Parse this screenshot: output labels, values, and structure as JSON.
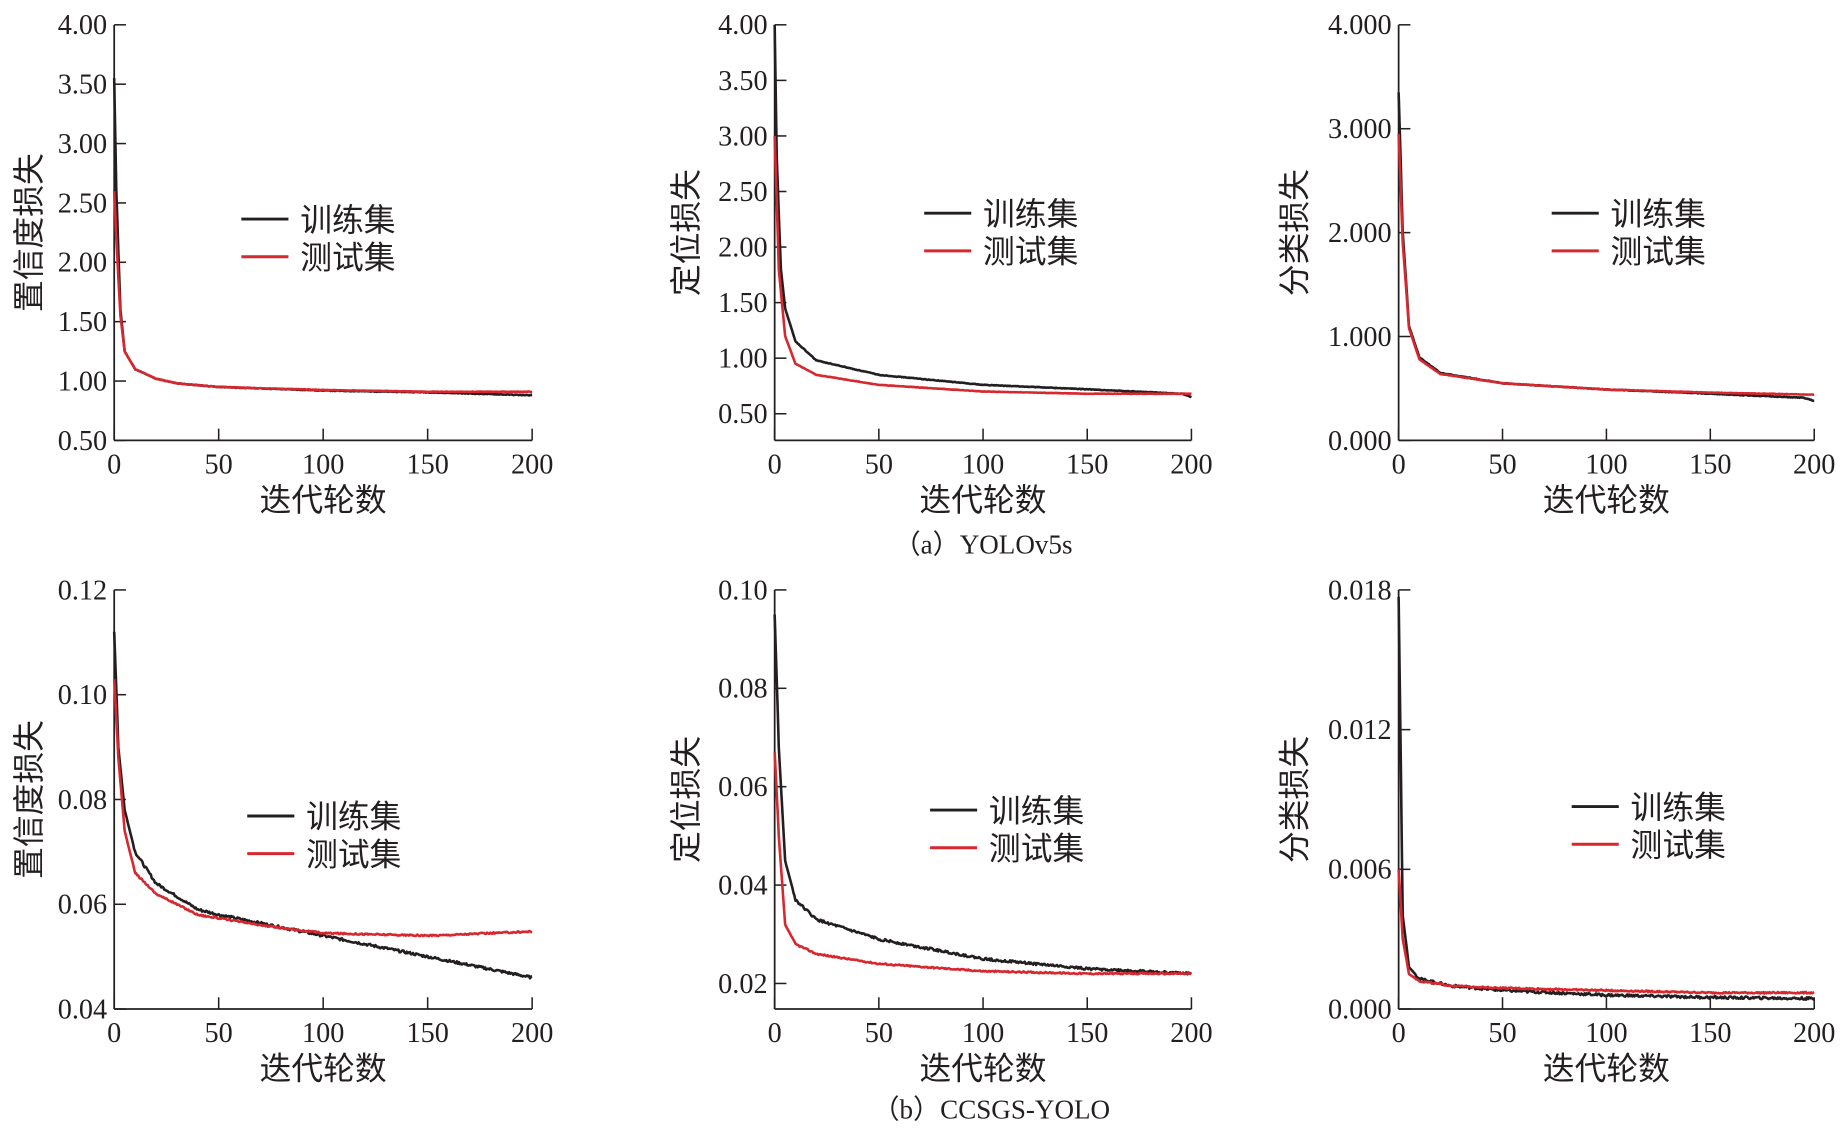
{
  "colors": {
    "train": "#231f20",
    "test": "#d7272f",
    "axis": "#231f20"
  },
  "legend": {
    "train": "训练集",
    "test": "测试集"
  },
  "captions": [
    "（a）YOLOv5s",
    "（b）CCSGS-YOLO"
  ],
  "chart_data": [
    {
      "type": "line",
      "row": 0,
      "col": 0,
      "ylabel": "置信度损失",
      "xlabel": "迭代轮数",
      "xlim": [
        0,
        200
      ],
      "ylim": [
        0.5,
        4.0
      ],
      "yticks": [
        "0.50",
        "1.00",
        "1.50",
        "2.00",
        "2.50",
        "3.00",
        "3.50",
        "4.00"
      ],
      "xticks": [
        "0",
        "50",
        "100",
        "150",
        "200"
      ],
      "grid": false,
      "legend_position": "center",
      "series": [
        {
          "name": "训练集",
          "points": [
            [
              0,
              3.55
            ],
            [
              1,
              2.6
            ],
            [
              3,
              1.6
            ],
            [
              5,
              1.25
            ],
            [
              10,
              1.1
            ],
            [
              20,
              1.02
            ],
            [
              30,
              0.98
            ],
            [
              50,
              0.95
            ],
            [
              100,
              0.92
            ],
            [
              150,
              0.905
            ],
            [
              200,
              0.88
            ]
          ]
        },
        {
          "name": "测试集",
          "points": [
            [
              0,
              2.6
            ],
            [
              1,
              2.2
            ],
            [
              3,
              1.55
            ],
            [
              5,
              1.25
            ],
            [
              10,
              1.1
            ],
            [
              20,
              1.02
            ],
            [
              30,
              0.98
            ],
            [
              50,
              0.95
            ],
            [
              100,
              0.925
            ],
            [
              150,
              0.91
            ],
            [
              200,
              0.91
            ]
          ]
        }
      ]
    },
    {
      "type": "line",
      "row": 0,
      "col": 1,
      "ylabel": "定位损失",
      "xlabel": "迭代轮数",
      "xlim": [
        0,
        200
      ],
      "ylim": [
        0.5,
        4.0
      ],
      "ymin_axis": 0.26,
      "yticks": [
        "0.50",
        "1.00",
        "1.50",
        "2.00",
        "2.50",
        "3.00",
        "3.50",
        "4.00"
      ],
      "xticks": [
        "0",
        "50",
        "100",
        "150",
        "200"
      ],
      "grid": false,
      "legend_position": "center",
      "series": [
        {
          "name": "训练集",
          "points": [
            [
              0,
              4.0
            ],
            [
              1,
              2.8
            ],
            [
              3,
              1.8
            ],
            [
              5,
              1.45
            ],
            [
              10,
              1.15
            ],
            [
              20,
              0.98
            ],
            [
              50,
              0.85
            ],
            [
              100,
              0.76
            ],
            [
              150,
              0.72
            ],
            [
              195,
              0.68
            ],
            [
              200,
              0.65
            ]
          ]
        },
        {
          "name": "测试集",
          "points": [
            [
              0,
              3.0
            ],
            [
              2,
              1.8
            ],
            [
              5,
              1.2
            ],
            [
              10,
              0.95
            ],
            [
              20,
              0.85
            ],
            [
              50,
              0.76
            ],
            [
              100,
              0.7
            ],
            [
              150,
              0.68
            ],
            [
              200,
              0.68
            ]
          ]
        }
      ]
    },
    {
      "type": "line",
      "row": 0,
      "col": 2,
      "ylabel": "分类损失",
      "xlabel": "迭代轮数",
      "xlim": [
        0,
        200
      ],
      "ylim": [
        0,
        4.0
      ],
      "yticks": [
        "0.000",
        "1.000",
        "2.000",
        "3.000",
        "4.000"
      ],
      "xticks": [
        "0",
        "50",
        "100",
        "150",
        "200"
      ],
      "grid": false,
      "legend_position": "center",
      "series": [
        {
          "name": "训练集",
          "points": [
            [
              0,
              3.35
            ],
            [
              2,
              2.0
            ],
            [
              5,
              1.1
            ],
            [
              10,
              0.8
            ],
            [
              20,
              0.65
            ],
            [
              50,
              0.55
            ],
            [
              100,
              0.49
            ],
            [
              150,
              0.45
            ],
            [
              195,
              0.41
            ],
            [
              200,
              0.38
            ]
          ]
        },
        {
          "name": "测试集",
          "points": [
            [
              0,
              2.95
            ],
            [
              2,
              1.9
            ],
            [
              5,
              1.08
            ],
            [
              10,
              0.78
            ],
            [
              20,
              0.64
            ],
            [
              50,
              0.55
            ],
            [
              100,
              0.49
            ],
            [
              150,
              0.46
            ],
            [
              200,
              0.44
            ]
          ]
        }
      ]
    },
    {
      "type": "line",
      "row": 1,
      "col": 0,
      "ylabel": "置信度损失",
      "xlabel": "迭代轮数",
      "xlim": [
        0,
        200
      ],
      "ylim": [
        0.04,
        0.12
      ],
      "yticks": [
        "0.04",
        "0.06",
        "0.08",
        "0.10",
        "0.12"
      ],
      "xticks": [
        "0",
        "50",
        "100",
        "150",
        "200"
      ],
      "grid": false,
      "legend_position": "center",
      "series": [
        {
          "name": "训练集",
          "points": [
            [
              0,
              0.112
            ],
            [
              2,
              0.09
            ],
            [
              5,
              0.078
            ],
            [
              10,
              0.07
            ],
            [
              20,
              0.064
            ],
            [
              40,
              0.059
            ],
            [
              50,
              0.058
            ],
            [
              100,
              0.054
            ],
            [
              150,
              0.05
            ],
            [
              200,
              0.046
            ]
          ]
        },
        {
          "name": "测试集",
          "points": [
            [
              0,
              0.103
            ],
            [
              2,
              0.088
            ],
            [
              5,
              0.074
            ],
            [
              10,
              0.066
            ],
            [
              20,
              0.062
            ],
            [
              40,
              0.058
            ],
            [
              70,
              0.056
            ],
            [
              100,
              0.0545
            ],
            [
              150,
              0.054
            ],
            [
              200,
              0.0548
            ]
          ]
        }
      ]
    },
    {
      "type": "line",
      "row": 1,
      "col": 1,
      "ylabel": "定位损失",
      "xlabel": "迭代轮数",
      "xlim": [
        0,
        200
      ],
      "ylim": [
        0.02,
        0.1
      ],
      "ymin_axis": 0.0148,
      "yticks": [
        "0.02",
        "0.04",
        "0.06",
        "0.08",
        "0.10"
      ],
      "xticks": [
        "0",
        "50",
        "100",
        "150",
        "200"
      ],
      "grid": false,
      "legend_position": "center",
      "series": [
        {
          "name": "训练集",
          "points": [
            [
              0,
              0.095
            ],
            [
              2,
              0.068
            ],
            [
              5,
              0.045
            ],
            [
              10,
              0.037
            ],
            [
              20,
              0.033
            ],
            [
              50,
              0.029
            ],
            [
              100,
              0.025
            ],
            [
              150,
              0.023
            ],
            [
              200,
              0.022
            ]
          ]
        },
        {
          "name": "测试集",
          "points": [
            [
              0,
              0.067
            ],
            [
              2,
              0.05
            ],
            [
              5,
              0.032
            ],
            [
              10,
              0.028
            ],
            [
              20,
              0.026
            ],
            [
              50,
              0.024
            ],
            [
              100,
              0.0225
            ],
            [
              150,
              0.022
            ],
            [
              200,
              0.022
            ]
          ]
        }
      ]
    },
    {
      "type": "line",
      "row": 1,
      "col": 2,
      "ylabel": "分类损失",
      "xlabel": "迭代轮数",
      "xlim": [
        0,
        200
      ],
      "ylim": [
        0,
        0.018
      ],
      "yticks": [
        "0.000",
        "0.006",
        "0.012",
        "0.018"
      ],
      "xticks": [
        "0",
        "50",
        "100",
        "150",
        "200"
      ],
      "grid": false,
      "legend_position": "center",
      "series": [
        {
          "name": "训练集",
          "points": [
            [
              0,
              0.0177
            ],
            [
              2,
              0.004
            ],
            [
              5,
              0.0018
            ],
            [
              10,
              0.0013
            ],
            [
              25,
              0.001
            ],
            [
              50,
              0.0008
            ],
            [
              100,
              0.0006
            ],
            [
              150,
              0.0005
            ],
            [
              200,
              0.00045
            ]
          ]
        },
        {
          "name": "测试集",
          "points": [
            [
              0,
              0.006
            ],
            [
              2,
              0.003
            ],
            [
              5,
              0.0015
            ],
            [
              10,
              0.0012
            ],
            [
              25,
              0.001
            ],
            [
              50,
              0.0009
            ],
            [
              100,
              0.0008
            ],
            [
              150,
              0.0007
            ],
            [
              200,
              0.0007
            ]
          ]
        }
      ]
    }
  ]
}
